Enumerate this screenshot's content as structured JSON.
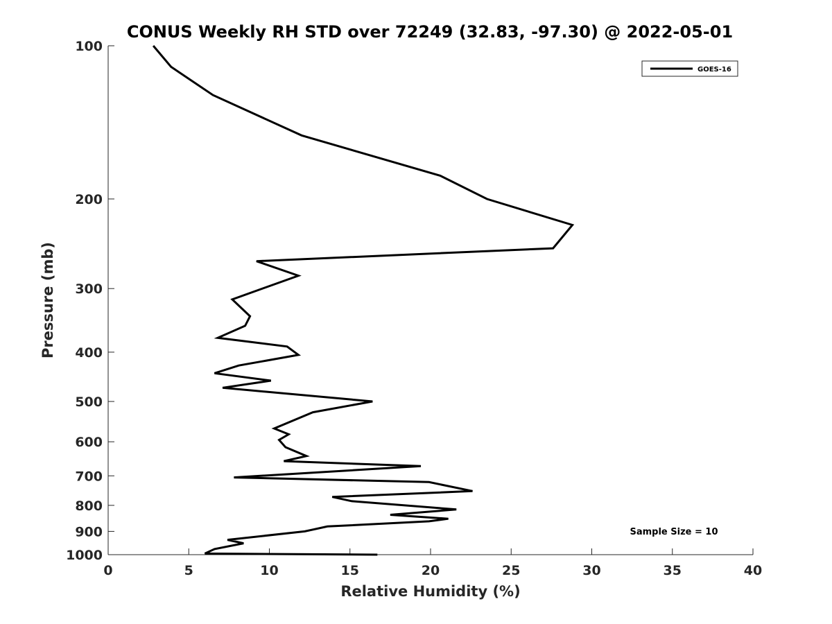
{
  "chart_data": {
    "type": "line",
    "title": "CONUS Weekly RH STD over 72249 (32.83, -97.30) @ 2022-05-01",
    "xlabel": "Relative Humidity (%)",
    "ylabel": "Pressure (mb)",
    "xlim": [
      0,
      40
    ],
    "ylim": [
      1000,
      100
    ],
    "y_scale": "log",
    "y_reversed": true,
    "x_ticks": [
      0,
      5,
      10,
      15,
      20,
      25,
      30,
      35,
      40
    ],
    "y_ticks": [
      100,
      200,
      300,
      400,
      500,
      600,
      700,
      800,
      900,
      1000
    ],
    "grid": false,
    "legend_position": "top-right",
    "annotation": "Sample Size = 10",
    "series": [
      {
        "name": "GOES-16",
        "color": "#000000",
        "x": [
          16.7,
          6.0,
          6.6,
          8.4,
          7.4,
          12.2,
          13.6,
          19.9,
          21.1,
          17.5,
          21.6,
          15.1,
          13.9,
          22.6,
          19.9,
          7.8,
          19.4,
          10.9,
          12.3,
          11.0,
          10.6,
          11.2,
          10.3,
          12.7,
          16.4,
          7.1,
          10.1,
          6.6,
          8.1,
          11.8,
          11.1,
          6.8,
          8.5,
          8.8,
          7.7,
          11.8,
          9.2,
          27.6,
          28.8,
          23.5,
          20.6,
          12.0,
          6.5,
          3.9,
          2.8
        ],
        "y": [
          1000,
          995,
          975,
          950,
          935,
          900,
          880,
          860,
          850,
          835,
          815,
          785,
          770,
          750,
          720,
          705,
          670,
          655,
          640,
          615,
          595,
          580,
          565,
          525,
          500,
          470,
          455,
          440,
          425,
          405,
          390,
          375,
          355,
          340,
          315,
          283,
          265,
          250,
          225,
          200,
          180,
          150,
          125,
          110,
          100
        ]
      }
    ]
  }
}
